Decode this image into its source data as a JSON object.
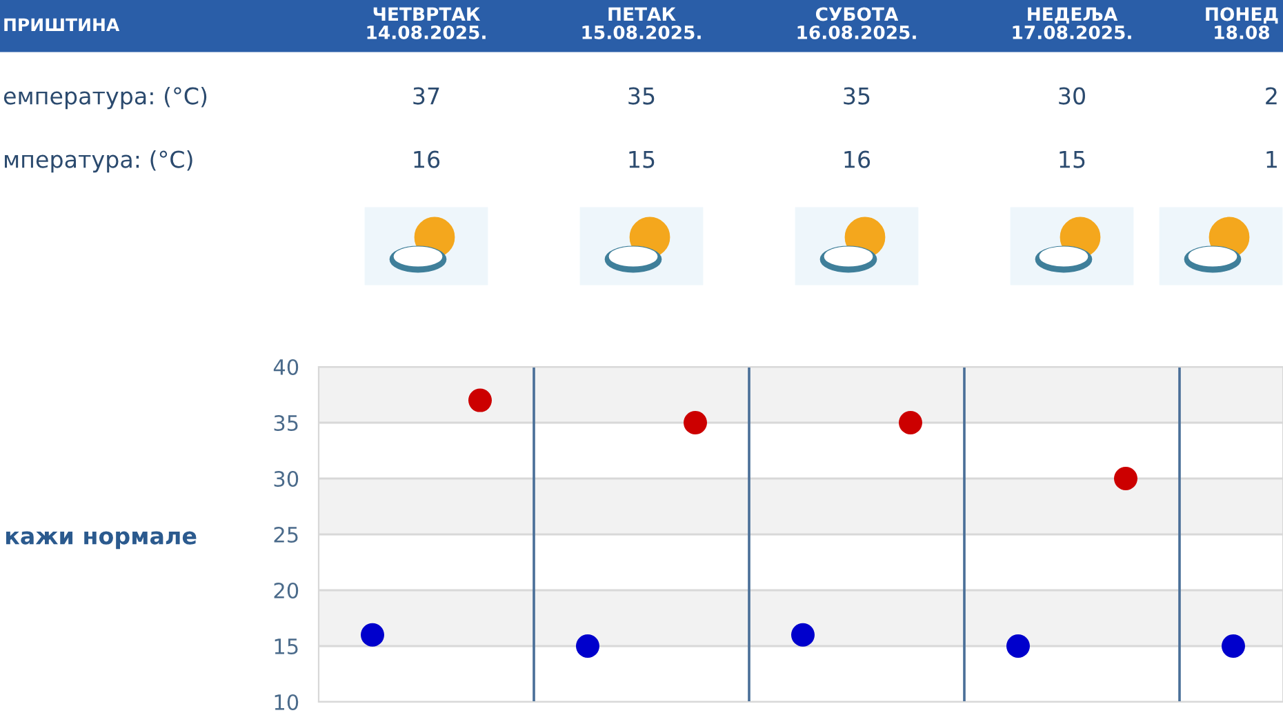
{
  "chart_data": [
    {
      "type": "scatter",
      "categories": [
        null,
        null,
        null,
        null,
        null,
        null,
        null,
        null,
        null
      ],
      "ylim": [
        10,
        40
      ],
      "yticks": [
        10,
        15,
        20,
        25,
        30,
        35,
        40
      ],
      "grid": "y",
      "marker": "circle",
      "annotations": [
        "кажи нормале"
      ],
      "series": [
        {
          "color": "#cc0000",
          "values": [
            null,
            37,
            null,
            35,
            null,
            35,
            null,
            30,
            null
          ]
        },
        {
          "color": "#0000cc",
          "values": [
            16,
            null,
            15,
            null,
            16,
            null,
            15,
            null,
            15
          ]
        }
      ],
      "bands": [
        {
          "axis": "y",
          "from": 35,
          "to": 40,
          "color": "#f2f2f2"
        },
        {
          "axis": "y",
          "from": 25,
          "to": 30,
          "color": "#f2f2f2"
        },
        {
          "axis": "y",
          "from": 15,
          "to": 20,
          "color": "#f2f2f2"
        }
      ]
    },
    {
      "type": "other",
      "title": "ПРИШТИНА",
      "categories": [
        "ЧЕТВРТАК\n14.08.2025.",
        "ПЕТАК\n15.08.2025.",
        "СУБОТА\n16.08.2025.",
        "НЕДЕЉА\n17.08.2025.",
        "ПОНЕД\n18.08"
      ],
      "series": [
        {
          "name": "емпература: (°C)",
          "color": "#2b4a6e",
          "values": [
            37,
            35,
            35,
            30,
            null
          ],
          "value_labels": [
            "37",
            "35",
            "35",
            "30",
            "2"
          ]
        },
        {
          "name": "мпература: (°C)",
          "color": "#2b4a6e",
          "values": [
            16,
            15,
            16,
            15,
            null
          ],
          "value_labels": [
            "16",
            "15",
            "16",
            "15",
            "1"
          ]
        }
      ]
    }
  ]
}
